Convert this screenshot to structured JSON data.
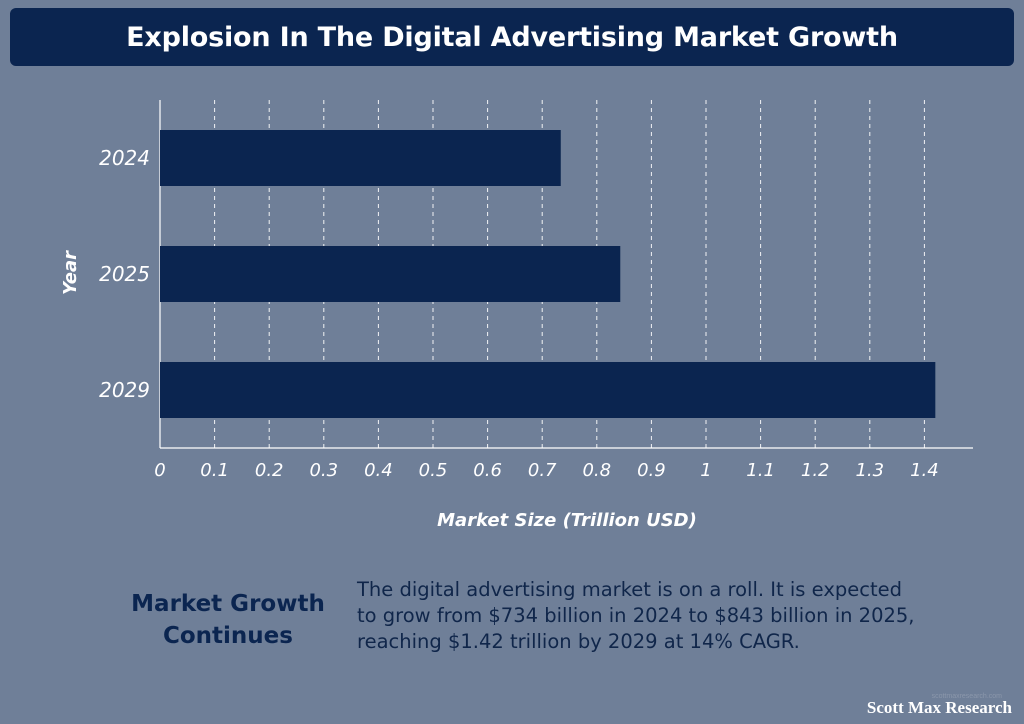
{
  "header": {
    "title": "Explosion In The Digital Advertising Market Growth"
  },
  "chart_data": {
    "type": "bar",
    "orientation": "horizontal",
    "categories": [
      "2024",
      "2025",
      "2029"
    ],
    "values": [
      0.734,
      0.843,
      1.42
    ],
    "xlabel": "Market Size (Trillion USD)",
    "ylabel": "Year",
    "xlim": [
      0,
      1.45
    ],
    "xticks": [
      0,
      0.1,
      0.2,
      0.3,
      0.4,
      0.5,
      0.6,
      0.7,
      0.8,
      0.9,
      1,
      1.1,
      1.2,
      1.3,
      1.4
    ],
    "grid": true,
    "bar_color": "#0b2550",
    "grid_color": "#ffffff"
  },
  "callout": {
    "title": "Market Growth Continues",
    "body": "The digital advertising market is on a roll. It is expected to grow from $734 billion in 2024 to $843 billion in 2025, reaching $1.42 trillion by 2029 at 14% CAGR."
  },
  "footer": {
    "small_text": "scottmaxresearch.com",
    "brand": "Scott Max Research"
  }
}
